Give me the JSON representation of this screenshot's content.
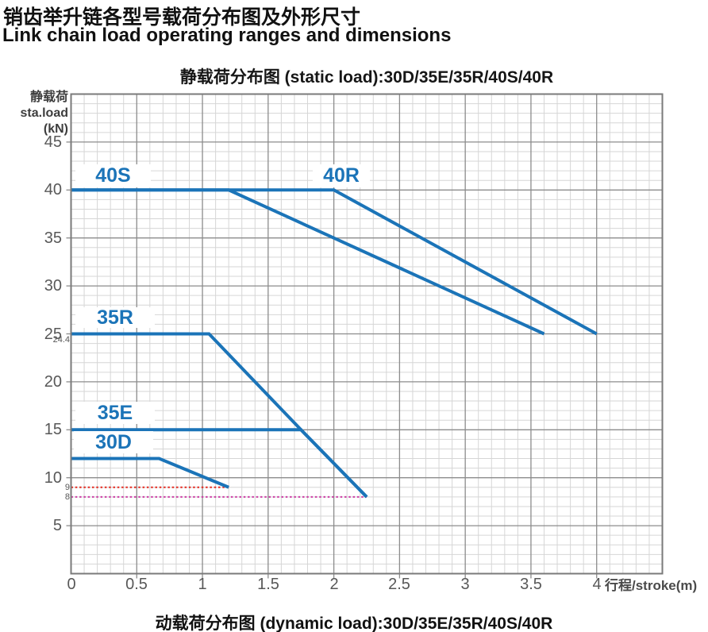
{
  "header": {
    "title_zh": "销齿举升链各型号载荷分布图及外形尺寸",
    "title_en": "Link chain load operating ranges and dimensions"
  },
  "footer": {
    "caption": "动载荷分布图  (dynamic load):30D/35E/35R/40S/40R"
  },
  "chart_data": {
    "type": "line",
    "title": "静载荷分布图  (static load):30D/35E/35R/40S/40R",
    "xlabel": "行程/stroke(m)",
    "ylabel": "静载荷 sta.load (kN)",
    "ylabel_lines": [
      "静载荷",
      "sta.load",
      "(kN)"
    ],
    "xlim": [
      0,
      4.5
    ],
    "ylim": [
      0,
      50
    ],
    "x_ticks": [
      0,
      0.5,
      1,
      1.5,
      2,
      2.5,
      3,
      3.5,
      4
    ],
    "y_ticks": [
      5,
      10,
      15,
      20,
      25,
      30,
      35,
      40,
      45
    ],
    "grid": {
      "minor_x_step": 0.1,
      "minor_y_step": 1,
      "major_x_step": 0.5,
      "major_y_step": 5
    },
    "legend_position": "labels-on-chart",
    "series": [
      {
        "name": "40S",
        "color": "#1b74b8",
        "points": [
          [
            0,
            40
          ],
          [
            1.2,
            40
          ],
          [
            3.6,
            25
          ]
        ]
      },
      {
        "name": "40R",
        "color": "#1b74b8",
        "points": [
          [
            0,
            40
          ],
          [
            2.0,
            40
          ],
          [
            4.0,
            25
          ]
        ]
      },
      {
        "name": "35R",
        "color": "#1b74b8",
        "points": [
          [
            0,
            25
          ],
          [
            1.05,
            25
          ],
          [
            1.75,
            15
          ],
          [
            2.25,
            8
          ]
        ]
      },
      {
        "name": "35E",
        "color": "#1b74b8",
        "points": [
          [
            0,
            15
          ],
          [
            1.75,
            15
          ],
          [
            2.25,
            8
          ]
        ]
      },
      {
        "name": "30D",
        "color": "#1b74b8",
        "points": [
          [
            0,
            12
          ],
          [
            0.67,
            12
          ],
          [
            1.2,
            9
          ]
        ]
      }
    ],
    "reference_lines": [
      {
        "label": "9",
        "value": 9,
        "x_start": 0,
        "x_end": 1.2,
        "color": "#e42a20",
        "style": "dotted",
        "has_line": true
      },
      {
        "label": "8",
        "value": 8,
        "x_start": 0,
        "x_end": 2.25,
        "color": "#cc3fa5",
        "style": "dotted",
        "has_line": true
      },
      {
        "label": "24.4",
        "value": 24.4,
        "x_start": 0,
        "x_end": 0,
        "color": "#585858",
        "style": "none",
        "has_line": false
      }
    ],
    "colors": {
      "line_blue": "#1b74b8",
      "grid_minor": "#d6d6d6",
      "grid_major": "#8c8c8c",
      "plot_border": "#7a7a7a",
      "ref_red": "#e42a20",
      "ref_magenta": "#cc3fa5",
      "tick_text": "#585858"
    }
  }
}
